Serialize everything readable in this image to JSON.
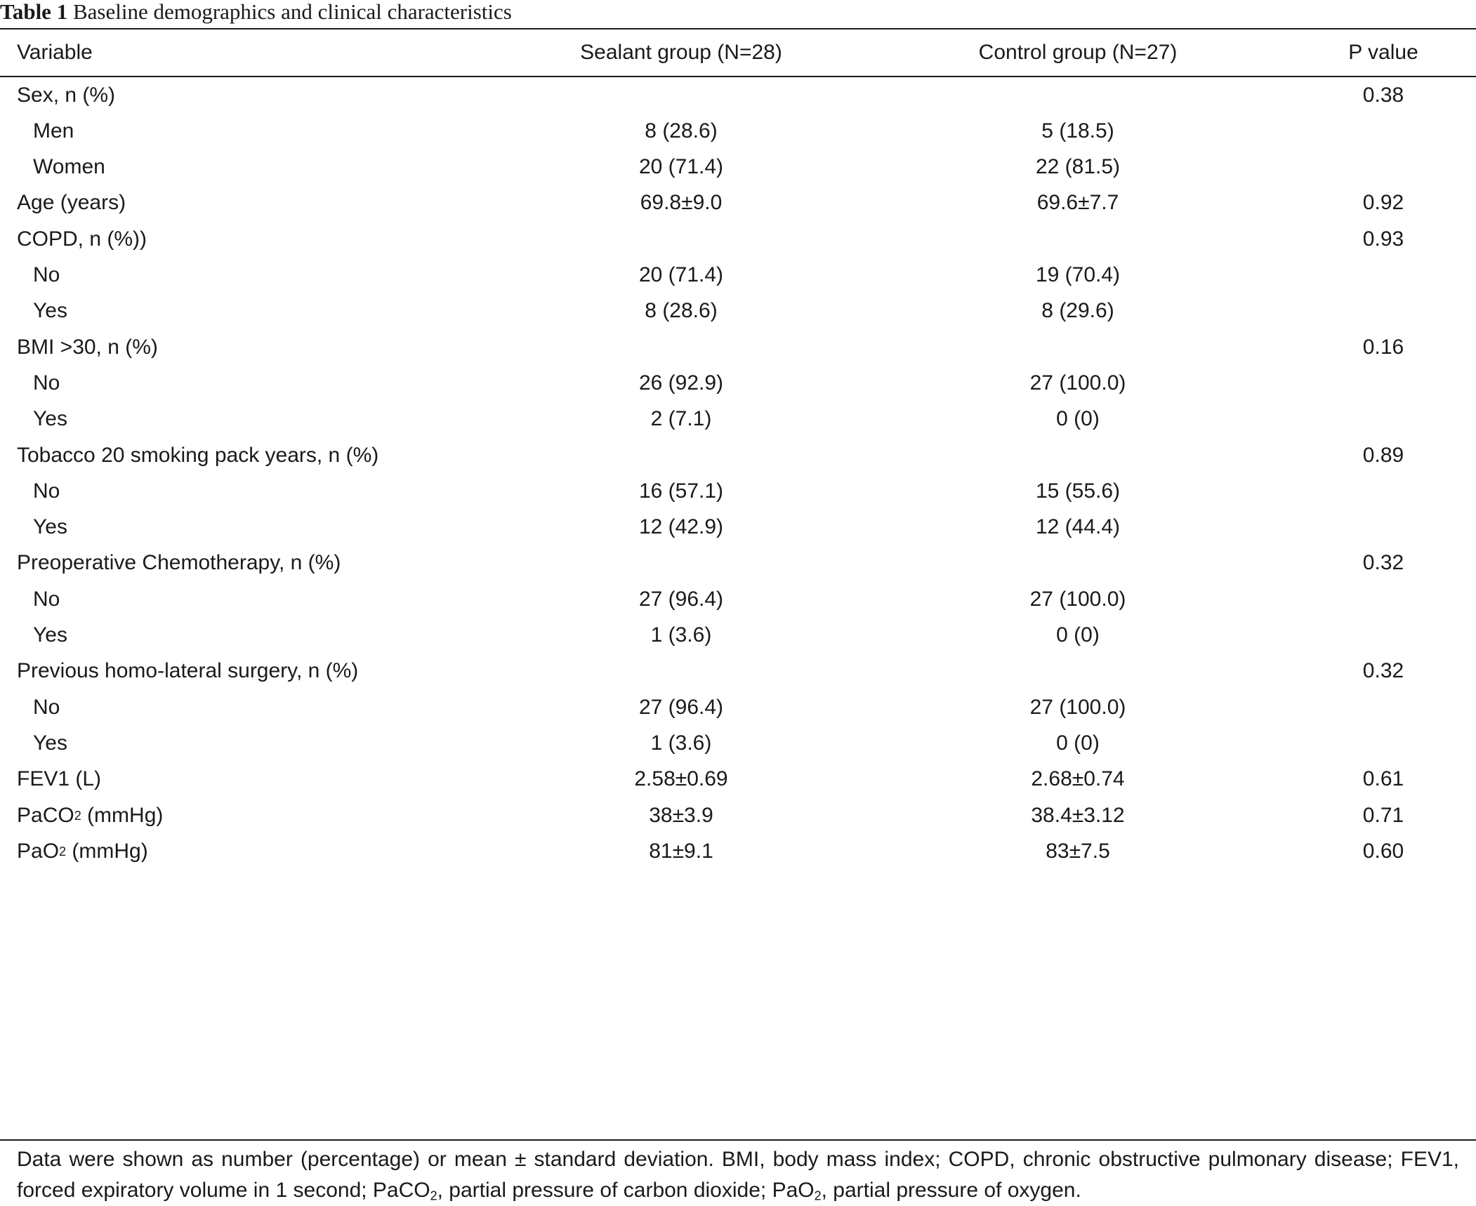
{
  "caption": {
    "label": "Table 1",
    "text": "Baseline demographics and clinical characteristics"
  },
  "table": {
    "headers": [
      "Variable",
      "Sealant group (N=28)",
      "Control group (N=27)",
      "P value"
    ],
    "rows": [
      {
        "variable": "Sex, n (%)",
        "sealant": "",
        "control": "",
        "p": "0.38",
        "indent": false
      },
      {
        "variable": "Men",
        "sealant": "8 (28.6)",
        "control": "5 (18.5)",
        "p": "",
        "indent": true
      },
      {
        "variable": "Women",
        "sealant": "20 (71.4)",
        "control": "22 (81.5)",
        "p": "",
        "indent": true
      },
      {
        "variable": "Age (years)",
        "sealant": "69.8±9.0",
        "control": "69.6±7.7",
        "p": "0.92",
        "indent": false
      },
      {
        "variable": "COPD, n (%))",
        "sealant": "",
        "control": "",
        "p": "0.93",
        "indent": false
      },
      {
        "variable": "No",
        "sealant": "20 (71.4)",
        "control": "19 (70.4)",
        "p": "",
        "indent": true
      },
      {
        "variable": "Yes",
        "sealant": "8 (28.6)",
        "control": "8 (29.6)",
        "p": "",
        "indent": true
      },
      {
        "variable": "BMI >30, n (%)",
        "sealant": "",
        "control": "",
        "p": "0.16",
        "indent": false
      },
      {
        "variable": "No",
        "sealant": "26 (92.9)",
        "control": "27 (100.0)",
        "p": "",
        "indent": true
      },
      {
        "variable": "Yes",
        "sealant": "2 (7.1)",
        "control": "0 (0)",
        "p": "",
        "indent": true
      },
      {
        "variable": "Tobacco 20 smoking pack years, n (%)",
        "sealant": "",
        "control": "",
        "p": "0.89",
        "indent": false
      },
      {
        "variable": "No",
        "sealant": "16 (57.1)",
        "control": "15 (55.6)",
        "p": "",
        "indent": true
      },
      {
        "variable": "Yes",
        "sealant": "12 (42.9)",
        "control": "12 (44.4)",
        "p": "",
        "indent": true
      },
      {
        "variable": "Preoperative Chemotherapy, n (%)",
        "sealant": "",
        "control": "",
        "p": "0.32",
        "indent": false
      },
      {
        "variable": "No",
        "sealant": "27 (96.4)",
        "control": "27 (100.0)",
        "p": "",
        "indent": true
      },
      {
        "variable": "Yes",
        "sealant": "1 (3.6)",
        "control": "0 (0)",
        "p": "",
        "indent": true
      },
      {
        "variable": "Previous homo-lateral surgery, n (%)",
        "sealant": "",
        "control": "",
        "p": "0.32",
        "indent": false
      },
      {
        "variable": "No",
        "sealant": "27 (96.4)",
        "control": "27 (100.0)",
        "p": "",
        "indent": true
      },
      {
        "variable": "Yes",
        "sealant": "1 (3.6)",
        "control": "0 (0)",
        "p": "",
        "indent": true
      },
      {
        "variable": "FEV1 (L)",
        "sealant": "2.58±0.69",
        "control": "2.68±0.74",
        "p": "0.61",
        "indent": false
      },
      {
        "variable": "PaCO",
        "variable_sub": "2",
        "variable_suffix": " (mmHg)",
        "sealant": "38±3.9",
        "control": "38.4±3.12",
        "p": "0.71",
        "indent": false
      },
      {
        "variable": "PaO",
        "variable_sub": "2",
        "variable_suffix": " (mmHg)",
        "sealant": "81±9.1",
        "control": "83±7.5",
        "p": "0.60",
        "indent": false
      }
    ]
  },
  "footnote": {
    "t1": "Data were shown as number (percentage) or mean ± standard deviation. BMI, body mass index; COPD, chronic obstructive pulmonary disease; FEV1, forced expiratory volume in 1 second; PaCO",
    "sub1": "2",
    "t2": ", partial pressure of carbon dioxide; PaO",
    "sub2": "2",
    "t3": ", partial pressure of oxygen."
  }
}
